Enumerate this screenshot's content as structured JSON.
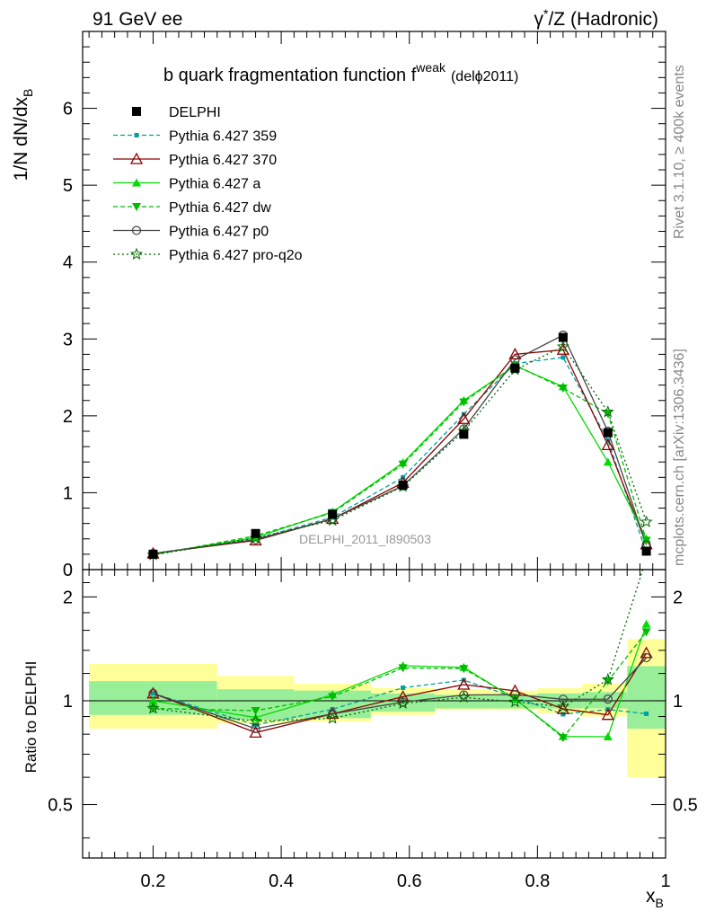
{
  "header": {
    "left": "91 GeV ee",
    "right_prefix": "γ",
    "right_sup": "*",
    "right_suffix": "/Z (Hadronic)"
  },
  "side_labels": {
    "top": "Rivet 3.1.10, ≥ 400k events",
    "bottom": "mcplots.cern.ch [arXiv:1306.3436]"
  },
  "chart_data": {
    "type": "line",
    "title": "b quark fragmentation function f",
    "title_sup": "weak",
    "title_suffix": "(delϕ2011)",
    "watermark": "DELPHI_2011_I890503",
    "xlabel": "x",
    "xlabel_sub": "B",
    "ylabel": "1/N dN/dx",
    "ylabel_sub": "B",
    "xlim": [
      0.09,
      1.0
    ],
    "ylim": [
      0,
      7.0
    ],
    "ratio_ylabel": "Ratio to DELPHI",
    "ratio_ylim": [
      0.35,
      2.4
    ],
    "x_ticks": [
      "0.2",
      "0.4",
      "0.6",
      "0.8",
      "1"
    ],
    "x_tick_values": [
      0.2,
      0.4,
      0.6,
      0.8,
      1.0
    ],
    "y_ticks": [
      "0",
      "1",
      "2",
      "3",
      "4",
      "5",
      "6"
    ],
    "y_tick_values": [
      0,
      1,
      2,
      3,
      4,
      5,
      6
    ],
    "ratio_ticks": [
      "0.5",
      "1",
      "2"
    ],
    "ratio_tick_values": [
      0.5,
      1,
      2
    ],
    "bins": [
      [
        0.1,
        0.3
      ],
      [
        0.3,
        0.42
      ],
      [
        0.42,
        0.54
      ],
      [
        0.54,
        0.64
      ],
      [
        0.64,
        0.73
      ],
      [
        0.73,
        0.8
      ],
      [
        0.8,
        0.87
      ],
      [
        0.87,
        0.94
      ],
      [
        0.94,
        1.0
      ]
    ],
    "x": [
      0.2,
      0.36,
      0.48,
      0.59,
      0.685,
      0.765,
      0.84,
      0.91,
      0.97
    ],
    "data": {
      "name": "DELPHI",
      "values": [
        0.2,
        0.47,
        0.72,
        1.1,
        1.76,
        2.62,
        3.02,
        1.78,
        0.24
      ],
      "band_inner": [
        [
          0.91,
          1.14
        ],
        [
          0.88,
          1.08
        ],
        [
          0.89,
          1.07
        ],
        [
          0.93,
          1.05
        ],
        [
          0.95,
          1.04
        ],
        [
          0.95,
          1.04
        ],
        [
          0.95,
          1.05
        ],
        [
          0.95,
          1.06
        ],
        [
          0.83,
          1.26
        ]
      ],
      "band_outer": [
        [
          0.83,
          1.28
        ],
        [
          0.86,
          1.18
        ],
        [
          0.87,
          1.12
        ],
        [
          0.91,
          1.09
        ],
        [
          0.94,
          1.08
        ],
        [
          0.94,
          1.07
        ],
        [
          0.92,
          1.09
        ],
        [
          0.9,
          1.12
        ],
        [
          0.6,
          1.51
        ]
      ]
    },
    "series": [
      {
        "name": "Pythia 6.427 359",
        "color": "#00a0a0",
        "dash": "5,3",
        "marker": "square_small",
        "values": [
          0.21,
          0.4,
          0.68,
          1.2,
          2.02,
          2.68,
          2.76,
          1.68,
          0.22
        ]
      },
      {
        "name": "Pythia 6.427 370",
        "color": "#8b0000",
        "dash": "",
        "marker": "triangle_open",
        "values": [
          0.21,
          0.38,
          0.66,
          1.13,
          1.96,
          2.8,
          2.86,
          1.62,
          0.33
        ]
      },
      {
        "name": "Pythia 6.427 a",
        "color": "#00dd00",
        "dash": "",
        "marker": "triangle_filled",
        "values": [
          0.2,
          0.42,
          0.75,
          1.39,
          2.2,
          2.65,
          2.38,
          1.4,
          0.4
        ]
      },
      {
        "name": "Pythia 6.427 dw",
        "color": "#00bb00",
        "dash": "5,3",
        "marker": "triangle_down",
        "values": [
          0.19,
          0.44,
          0.74,
          1.37,
          2.18,
          2.66,
          2.36,
          2.03,
          0.38
        ]
      },
      {
        "name": "Pythia 6.427 p0",
        "color": "#444444",
        "dash": "",
        "marker": "circle_open",
        "values": [
          0.21,
          0.39,
          0.66,
          1.09,
          1.83,
          2.73,
          3.05,
          1.8,
          0.32
        ]
      },
      {
        "name": "Pythia 6.427 pro-q2o",
        "color": "#006600",
        "dash": "2,3",
        "marker": "star",
        "values": [
          0.19,
          0.41,
          0.64,
          1.08,
          1.8,
          2.6,
          2.9,
          2.05,
          0.62
        ]
      }
    ]
  }
}
